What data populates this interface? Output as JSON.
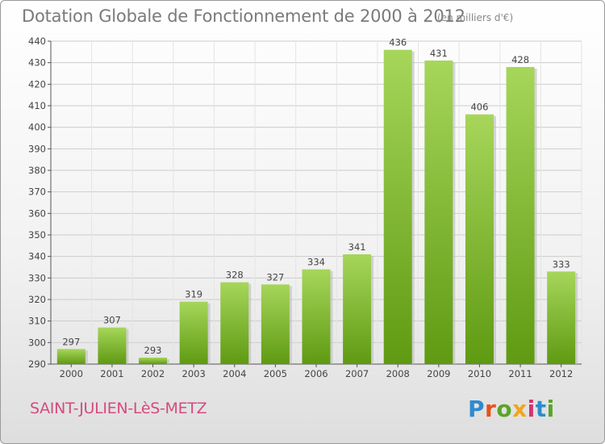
{
  "header": {
    "title": "Dotation Globale de Fonctionnement de 2000 à 2012",
    "subtitle": "(en milliers d'€)"
  },
  "footer": {
    "city": "SAINT-JULIEN-LèS-METZ",
    "logo_text": "Proxiti",
    "logo_colors": [
      "#2e8bcf",
      "#e8501e",
      "#5aa428",
      "#f2a51c",
      "#d6326e",
      "#2e8bcf",
      "#5aa428"
    ]
  },
  "colors": {
    "bar_light": "#a6d65a",
    "bar_dark": "#5f9a12",
    "grid": "#cccccc"
  },
  "chart_data": {
    "type": "bar",
    "categories": [
      "2000",
      "2001",
      "2002",
      "2003",
      "2004",
      "2005",
      "2006",
      "2007",
      "2008",
      "2009",
      "2010",
      "2011",
      "2012"
    ],
    "values": [
      297,
      307,
      293,
      319,
      328,
      327,
      334,
      341,
      436,
      431,
      406,
      428,
      333
    ],
    "title": "Dotation Globale de Fonctionnement de 2000 à 2012",
    "ylabel": "",
    "xlabel": "",
    "ylim": [
      290,
      440
    ],
    "yticks": [
      290,
      300,
      310,
      320,
      330,
      340,
      350,
      360,
      370,
      380,
      390,
      400,
      410,
      420,
      430,
      440
    ],
    "grid": true,
    "legend": "none"
  }
}
